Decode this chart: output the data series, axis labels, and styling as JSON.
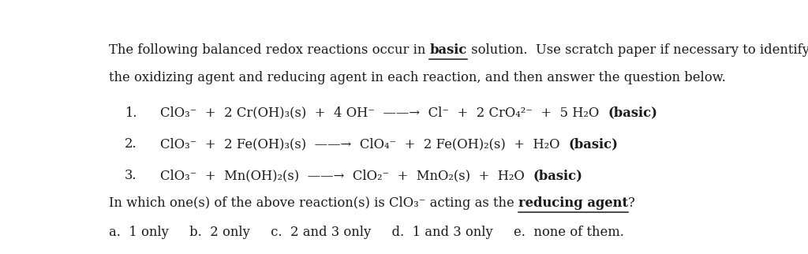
{
  "bg_color": "#ffffff",
  "text_color": "#1a1a1a",
  "figsize": [
    10.24,
    3.22
  ],
  "dpi": 100,
  "font_size": 11.8,
  "font_family": "DejaVu Serif",
  "line1_pre": "The following balanced redox reactions occur in ",
  "line1_bold": "basic",
  "line1_post": " solution.  Use scratch paper if necessary to identify",
  "line2": "the oxidizing agent and reducing agent in each reaction, and then answer the question below.",
  "rxn1_label": "1.",
  "rxn1_text": "ClO₃⁻  +  2 Cr(OH)₃(s)  +  4 OH⁻  ——→  Cl⁻  +  2 CrO₄²⁻  +  5 H₂O",
  "rxn1_basic": "(basic)",
  "rxn2_label": "2.",
  "rxn2_text": "ClO₃⁻  +  2 Fe(OH)₃(s)  ——→  ClO₄⁻  +  2 Fe(OH)₂(s)  +  H₂O",
  "rxn2_basic": "(basic)",
  "rxn3_label": "3.",
  "rxn3_text": "ClO₃⁻  +  Mn(OH)₂(s)  ——→  ClO₂⁻  +  MnO₂(s)  +  H₂O",
  "rxn3_basic": "(basic)",
  "q_pre": "In which one(s) of the above reaction(s) is ClO₃⁻ acting as the ",
  "q_bold": "reducing agent",
  "q_post": "?",
  "answers": "a.  1 only     b.  2 only     c.  2 and 3 only     d.  1 and 3 only     e.  none of them."
}
